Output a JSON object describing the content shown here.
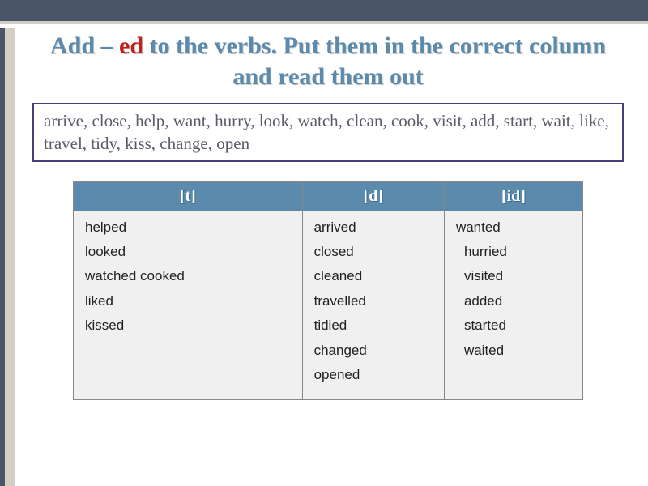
{
  "title": {
    "part1a": "Add – ",
    "ed": "ed",
    "part1b": " to the verbs. Put them in the correct column and read them out"
  },
  "verb_list": "arrive, close, help, want, hurry, look, watch, clean, cook, visit, add, start, wait, like, travel, tidy, kiss, change, open",
  "table": {
    "headers": [
      "[t]",
      "[d]",
      "[id]"
    ],
    "columns": {
      "t": [
        "helped",
        "looked",
        "watched cooked",
        "liked",
        "kissed"
      ],
      "d": [
        "arrived",
        "closed",
        "cleaned",
        "travelled",
        "tidied",
        "changed",
        "opened"
      ],
      "id": [
        "wanted",
        "hurried",
        "visited",
        "added",
        "started",
        "waited"
      ]
    }
  },
  "colors": {
    "header_bg": "#5b8aad",
    "header_text": "#ffffff",
    "cell_bg": "#f0f0f0",
    "title_blue": "#5b8aad",
    "title_red": "#c21f1f",
    "topbar": "#4a5568",
    "stripe": "#d4cfc5",
    "verb_box_border": "#4a3d7a"
  }
}
